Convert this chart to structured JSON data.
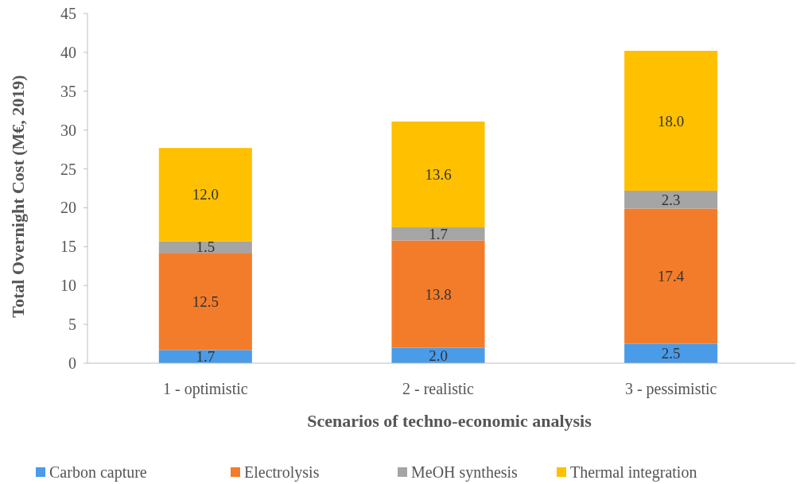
{
  "chart_data": {
    "type": "bar",
    "stacked": true,
    "xlabel": "Scenarios of techno-economic analysis",
    "ylabel": "Total Overnight Cost (M€, 2019)",
    "categories": [
      "1 - optimistic",
      "2 - realistic",
      "3 - pessimistic"
    ],
    "series": [
      {
        "name": "Carbon capture",
        "color": "#4a9be8",
        "values": [
          1.7,
          2.0,
          2.5
        ],
        "value_labels": [
          "1.7",
          "2.0",
          "2.5"
        ]
      },
      {
        "name": "Electrolysis",
        "color": "#f37c2a",
        "values": [
          12.5,
          13.8,
          17.4
        ],
        "value_labels": [
          "12.5",
          "13.8",
          "17.4"
        ]
      },
      {
        "name": "MeOH synthesis",
        "color": "#a5a5a5",
        "values": [
          1.5,
          1.7,
          2.3
        ],
        "value_labels": [
          "1.5",
          "1.7",
          "2.3"
        ]
      },
      {
        "name": "Thermal integration",
        "color": "#ffc000",
        "values": [
          12.0,
          13.6,
          18.0
        ],
        "value_labels": [
          "12.0",
          "13.6",
          "18.0"
        ]
      }
    ],
    "ylim": [
      0,
      45
    ],
    "yticks": [
      0,
      5,
      10,
      15,
      20,
      25,
      30,
      35,
      40,
      45
    ],
    "grid": false,
    "legend": "bottom"
  }
}
